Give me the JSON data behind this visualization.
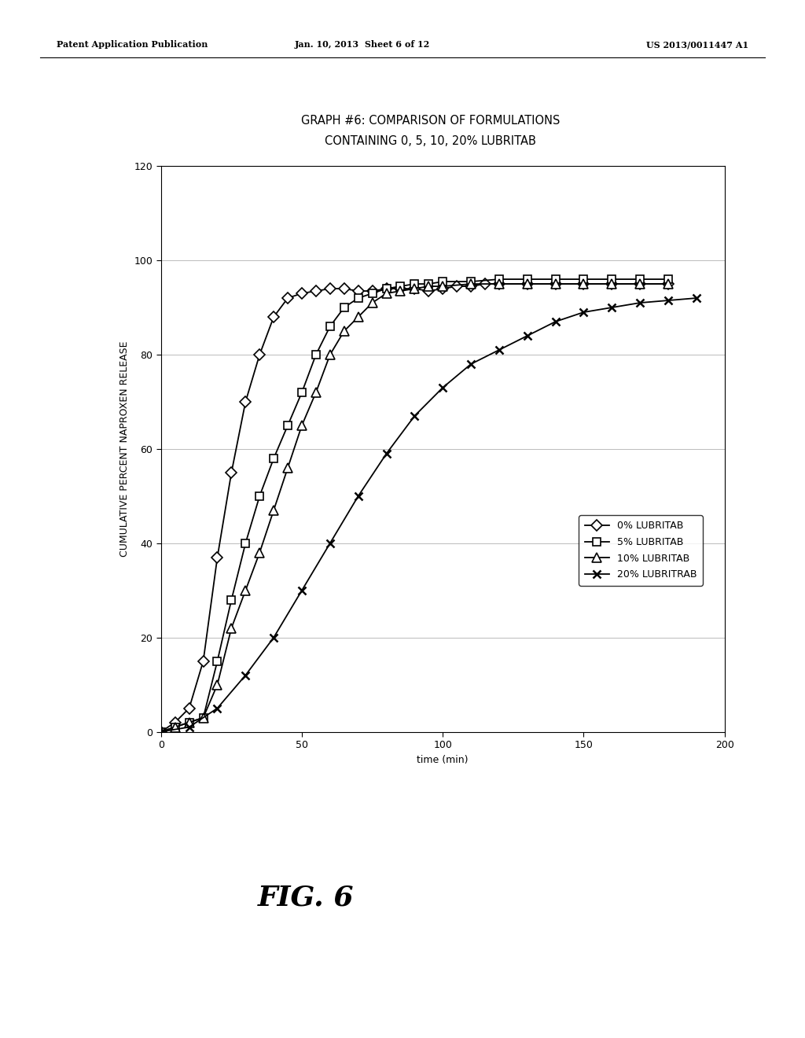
{
  "title_line1": "GRAPH #6: COMPARISON OF FORMULATIONS",
  "title_line2": "CONTAINING 0, 5, 10, 20% LUBRITAB",
  "xlabel": "time (min)",
  "ylabel": "CUMULATIVE PERCENT NAPROXEN RELEASE",
  "xlim": [
    0,
    200
  ],
  "ylim": [
    0,
    120
  ],
  "xticks": [
    0,
    50,
    100,
    150,
    200
  ],
  "yticks": [
    0,
    20,
    40,
    60,
    80,
    100,
    120
  ],
  "header_left": "Patent Application Publication",
  "header_center": "Jan. 10, 2013  Sheet 6 of 12",
  "header_right": "US 2013/0011447 A1",
  "fig_label": "FIG. 6",
  "series": [
    {
      "label": "0% LUBRITAB",
      "marker": "D",
      "x": [
        0,
        5,
        10,
        15,
        20,
        25,
        30,
        35,
        40,
        45,
        50,
        55,
        60,
        65,
        70,
        75,
        80,
        85,
        90,
        95,
        100,
        105,
        110,
        115,
        120,
        130,
        140,
        150,
        160,
        170,
        180
      ],
      "y": [
        0,
        2,
        5,
        15,
        37,
        55,
        70,
        80,
        88,
        92,
        93,
        93.5,
        94,
        94,
        93.5,
        93.5,
        94,
        94,
        94,
        93.5,
        94,
        94.5,
        94.5,
        95,
        95,
        95,
        95,
        95,
        95,
        95,
        95
      ]
    },
    {
      "label": "5% LUBRITAB",
      "marker": "s",
      "x": [
        0,
        5,
        10,
        15,
        20,
        25,
        30,
        35,
        40,
        45,
        50,
        55,
        60,
        65,
        70,
        75,
        80,
        85,
        90,
        95,
        100,
        110,
        120,
        130,
        140,
        150,
        160,
        170,
        180
      ],
      "y": [
        0,
        1,
        2,
        3,
        15,
        28,
        40,
        50,
        58,
        65,
        72,
        80,
        86,
        90,
        92,
        93,
        94,
        94.5,
        95,
        95,
        95.5,
        95.5,
        96,
        96,
        96,
        96,
        96,
        96,
        96
      ]
    },
    {
      "label": "10% LUBRITAB",
      "marker": "^",
      "x": [
        0,
        5,
        10,
        15,
        20,
        25,
        30,
        35,
        40,
        45,
        50,
        55,
        60,
        65,
        70,
        75,
        80,
        85,
        90,
        95,
        100,
        110,
        120,
        130,
        140,
        150,
        160,
        170,
        180
      ],
      "y": [
        0,
        1,
        2,
        3,
        10,
        22,
        30,
        38,
        47,
        56,
        65,
        72,
        80,
        85,
        88,
        91,
        93,
        93.5,
        94,
        94.5,
        94.5,
        95,
        95,
        95,
        95,
        95,
        95,
        95,
        95
      ]
    },
    {
      "label": "20% LUBRITRAB",
      "marker": "x",
      "x": [
        0,
        10,
        20,
        30,
        40,
        50,
        60,
        70,
        80,
        90,
        100,
        110,
        120,
        130,
        140,
        150,
        160,
        170,
        180,
        190
      ],
      "y": [
        0,
        1,
        5,
        12,
        20,
        30,
        40,
        50,
        59,
        67,
        73,
        78,
        81,
        84,
        87,
        89,
        90,
        91,
        91.5,
        92
      ]
    }
  ],
  "background_color": "#ffffff",
  "plot_bg_color": "#ffffff",
  "line_color": "#000000",
  "grid_color": "#bbbbbb",
  "title_fontsize": 10.5,
  "axis_label_fontsize": 9,
  "tick_fontsize": 9,
  "legend_fontsize": 9,
  "header_fontsize": 8
}
